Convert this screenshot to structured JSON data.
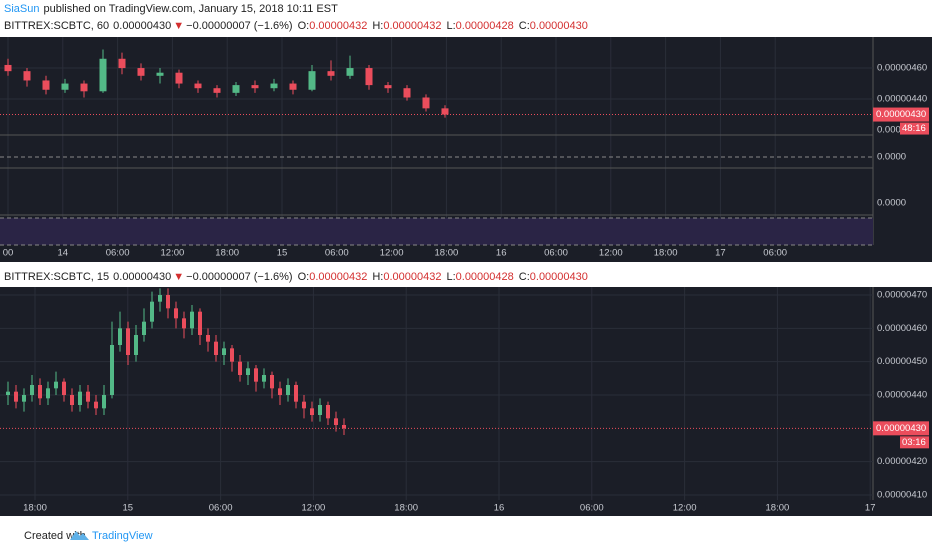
{
  "byline": {
    "author": "SiaSun",
    "text": "published on TradingView.com, January 15, 2018 10:11 EST"
  },
  "footer": {
    "created": "Created with",
    "brand": "TradingView"
  },
  "chart_data": [
    {
      "type": "candlestick",
      "title": "BITTREX:SCBTC, 60",
      "last": "0.00000430",
      "arrow": "▼",
      "change": "−0.00000007 (−1.6%)",
      "ohlc": [
        {
          "label": "O:",
          "value": "0.00000432"
        },
        {
          "label": "H:",
          "value": "0.00000432"
        },
        {
          "label": "L:",
          "value": "0.00000428"
        },
        {
          "label": "C:",
          "value": "0.00000430"
        }
      ],
      "ylim": [
        4.168e-06,
        4.794e-06
      ],
      "yticks": [
        {
          "value": 4.6e-06,
          "label": "0.00000460"
        },
        {
          "value": 4.4e-06,
          "label": "0.00000440"
        }
      ],
      "price_line": {
        "value": 4.3e-06,
        "label": "0.00000430"
      },
      "countdown": "48:16",
      "indicator_labels": [
        "0.000",
        "0.0000",
        "0.0000"
      ],
      "time_labels": [
        "00",
        "14",
        "06:00",
        "12:00",
        "18:00",
        "15",
        "06:00",
        "12:00",
        "18:00",
        "16",
        "06:00",
        "12:00",
        "18:00",
        "17",
        "06:00"
      ],
      "open": [
        4.62e-06,
        4.58e-06,
        4.52e-06,
        4.46e-06,
        4.5e-06,
        4.45e-06,
        4.66e-06,
        4.6e-06,
        4.55e-06,
        4.57e-06,
        4.5e-06,
        4.47e-06,
        4.44e-06,
        4.49e-06,
        4.47e-06,
        4.5e-06,
        4.46e-06,
        4.58e-06,
        4.55e-06,
        4.6e-06,
        4.49e-06,
        4.47e-06,
        4.41e-06,
        4.34e-06
      ],
      "high": [
        4.66e-06,
        4.6e-06,
        4.55e-06,
        4.53e-06,
        4.52e-06,
        4.72e-06,
        4.7e-06,
        4.63e-06,
        4.6e-06,
        4.59e-06,
        4.52e-06,
        4.49e-06,
        4.51e-06,
        4.52e-06,
        4.53e-06,
        4.52e-06,
        4.62e-06,
        4.65e-06,
        4.68e-06,
        4.62e-06,
        4.51e-06,
        4.49e-06,
        4.43e-06,
        4.36e-06
      ],
      "low": [
        4.55e-06,
        4.48e-06,
        4.43e-06,
        4.44e-06,
        4.41e-06,
        4.44e-06,
        4.56e-06,
        4.52e-06,
        4.5e-06,
        4.47e-06,
        4.44e-06,
        4.41e-06,
        4.42e-06,
        4.44e-06,
        4.45e-06,
        4.43e-06,
        4.45e-06,
        4.52e-06,
        4.53e-06,
        4.46e-06,
        4.44e-06,
        4.39e-06,
        4.32e-06,
        4.28e-06
      ],
      "close": [
        4.58e-06,
        4.52e-06,
        4.46e-06,
        4.5e-06,
        4.45e-06,
        4.66e-06,
        4.6e-06,
        4.55e-06,
        4.57e-06,
        4.5e-06,
        4.47e-06,
        4.44e-06,
        4.49e-06,
        4.47e-06,
        4.5e-06,
        4.46e-06,
        4.58e-06,
        4.55e-06,
        4.6e-06,
        4.49e-06,
        4.47e-06,
        4.41e-06,
        4.34e-06,
        4.3e-06
      ],
      "up_color": "#53b987",
      "down_color": "#eb4d5c"
    },
    {
      "type": "candlestick",
      "title": "BITTREX:SCBTC, 15",
      "last": "0.00000430",
      "arrow": "▼",
      "change": "−0.00000007 (−1.6%)",
      "ohlc": [
        {
          "label": "O:",
          "value": "0.00000432"
        },
        {
          "label": "H:",
          "value": "0.00000432"
        },
        {
          "label": "L:",
          "value": "0.00000428"
        },
        {
          "label": "C:",
          "value": "0.00000430"
        }
      ],
      "ylim": [
        4.085e-06,
        4.721e-06
      ],
      "yticks": [
        {
          "value": 4.7e-06,
          "label": "0.00000470"
        },
        {
          "value": 4.6e-06,
          "label": "0.00000460"
        },
        {
          "value": 4.5e-06,
          "label": "0.00000450"
        },
        {
          "value": 4.4e-06,
          "label": "0.00000440"
        },
        {
          "value": 4.2e-06,
          "label": "0.00000420"
        },
        {
          "value": 4.1e-06,
          "label": "0.00000410"
        }
      ],
      "price_line": {
        "value": 4.3e-06,
        "label": "0.00000430"
      },
      "countdown": "03:16",
      "time_labels": [
        "18:00",
        "15",
        "06:00",
        "12:00",
        "18:00",
        "16",
        "06:00",
        "12:00",
        "18:00",
        "17"
      ],
      "open": [
        4.4e-06,
        4.41e-06,
        4.38e-06,
        4.4e-06,
        4.43e-06,
        4.39e-06,
        4.42e-06,
        4.44e-06,
        4.4e-06,
        4.37e-06,
        4.41e-06,
        4.38e-06,
        4.36e-06,
        4.4e-06,
        4.55e-06,
        4.6e-06,
        4.52e-06,
        4.58e-06,
        4.62e-06,
        4.68e-06,
        4.7e-06,
        4.66e-06,
        4.63e-06,
        4.6e-06,
        4.65e-06,
        4.58e-06,
        4.56e-06,
        4.52e-06,
        4.54e-06,
        4.5e-06,
        4.46e-06,
        4.48e-06,
        4.44e-06,
        4.46e-06,
        4.42e-06,
        4.4e-06,
        4.43e-06,
        4.38e-06,
        4.36e-06,
        4.34e-06,
        4.37e-06,
        4.33e-06,
        4.31e-06
      ],
      "high": [
        4.44e-06,
        4.43e-06,
        4.42e-06,
        4.46e-06,
        4.45e-06,
        4.44e-06,
        4.47e-06,
        4.45e-06,
        4.42e-06,
        4.43e-06,
        4.43e-06,
        4.4e-06,
        4.43e-06,
        4.62e-06,
        4.65e-06,
        4.62e-06,
        4.61e-06,
        4.66e-06,
        4.71e-06,
        4.72e-06,
        4.72e-06,
        4.68e-06,
        4.65e-06,
        4.67e-06,
        4.66e-06,
        4.6e-06,
        4.58e-06,
        4.56e-06,
        4.55e-06,
        4.52e-06,
        4.5e-06,
        4.49e-06,
        4.48e-06,
        4.47e-06,
        4.44e-06,
        4.45e-06,
        4.44e-06,
        4.4e-06,
        4.38e-06,
        4.39e-06,
        4.38e-06,
        4.35e-06,
        4.33e-06
      ],
      "low": [
        4.37e-06,
        4.36e-06,
        4.35e-06,
        4.38e-06,
        4.37e-06,
        4.37e-06,
        4.4e-06,
        4.38e-06,
        4.35e-06,
        4.35e-06,
        4.36e-06,
        4.34e-06,
        4.34e-06,
        4.39e-06,
        4.53e-06,
        4.49e-06,
        4.5e-06,
        4.56e-06,
        4.6e-06,
        4.65e-06,
        4.63e-06,
        4.6e-06,
        4.57e-06,
        4.58e-06,
        4.55e-06,
        4.53e-06,
        4.5e-06,
        4.49e-06,
        4.47e-06,
        4.44e-06,
        4.43e-06,
        4.41e-06,
        4.42e-06,
        4.39e-06,
        4.37e-06,
        4.38e-06,
        4.36e-06,
        4.33e-06,
        4.32e-06,
        4.32e-06,
        4.31e-06,
        4.29e-06,
        4.28e-06
      ],
      "close": [
        4.41e-06,
        4.38e-06,
        4.4e-06,
        4.43e-06,
        4.39e-06,
        4.42e-06,
        4.44e-06,
        4.4e-06,
        4.37e-06,
        4.41e-06,
        4.38e-06,
        4.36e-06,
        4.4e-06,
        4.55e-06,
        4.6e-06,
        4.52e-06,
        4.58e-06,
        4.62e-06,
        4.68e-06,
        4.7e-06,
        4.66e-06,
        4.63e-06,
        4.6e-06,
        4.65e-06,
        4.58e-06,
        4.56e-06,
        4.52e-06,
        4.54e-06,
        4.5e-06,
        4.46e-06,
        4.48e-06,
        4.44e-06,
        4.46e-06,
        4.42e-06,
        4.4e-06,
        4.43e-06,
        4.38e-06,
        4.36e-06,
        4.34e-06,
        4.37e-06,
        4.33e-06,
        4.31e-06,
        4.3e-06
      ],
      "up_color": "#53b987",
      "down_color": "#eb4d5c"
    }
  ]
}
